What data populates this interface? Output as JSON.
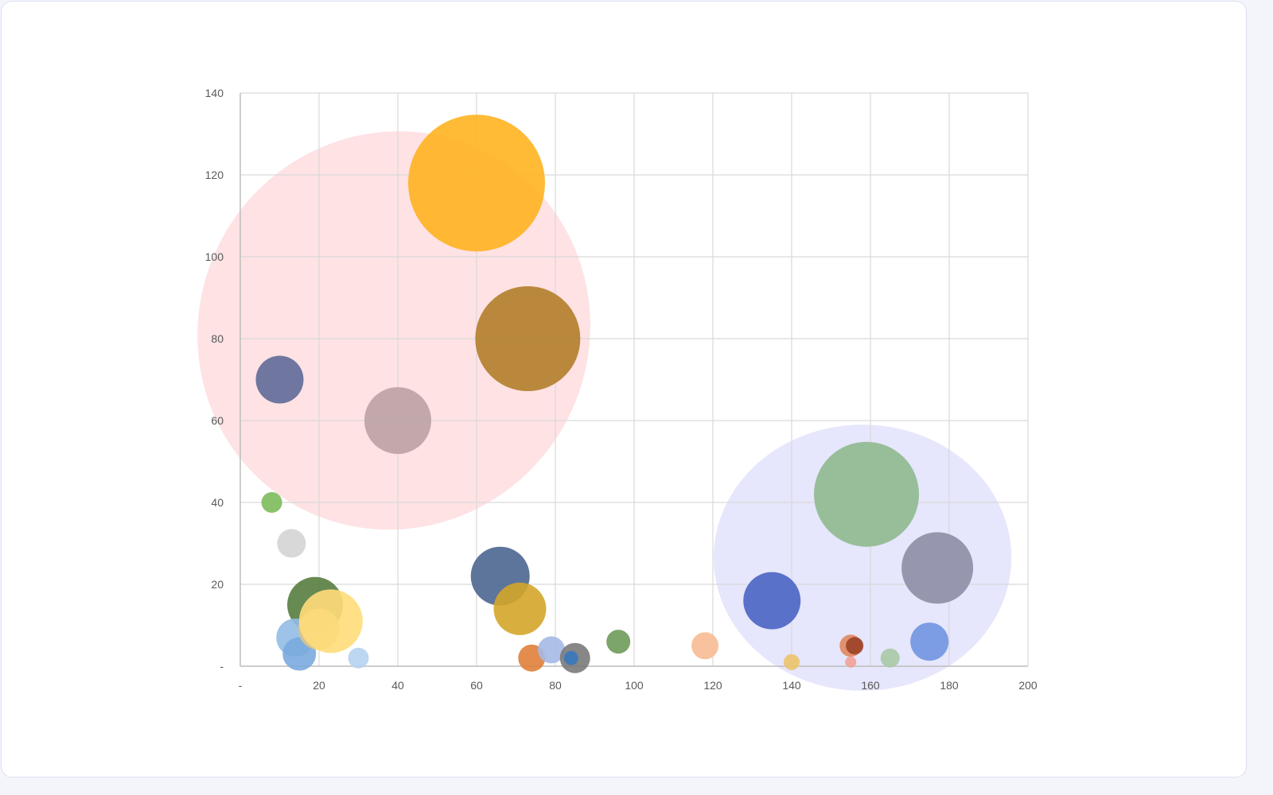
{
  "chart_data": {
    "type": "bubble",
    "title": "",
    "xlabel": "",
    "ylabel": "",
    "xlim": [
      0,
      200
    ],
    "ylim": [
      0,
      140
    ],
    "grid": true,
    "legend": "none",
    "x_ticks": [
      "-",
      "20",
      "40",
      "60",
      "80",
      "100",
      "120",
      "140",
      "160",
      "180",
      "200"
    ],
    "y_ticks": [
      "-",
      "20",
      "40",
      "60",
      "80",
      "100",
      "120",
      "140"
    ],
    "highlight_regions": [
      {
        "name": "top-left-cluster",
        "cx": 39,
        "cy": 82,
        "rx": 49.5,
        "ry": 49,
        "rotation_deg": 30,
        "color": "#fdd5d9"
      },
      {
        "name": "bottom-right-cluster",
        "cx": 158,
        "cy": 26.5,
        "rx": 37.8,
        "ry": 32.5,
        "rotation_deg": 0,
        "color": "#dcdcfb"
      }
    ],
    "series": [
      {
        "x": 60,
        "y": 118,
        "size": 86,
        "color": "#ffb320"
      },
      {
        "x": 73,
        "y": 80,
        "size": 66,
        "color": "#b37e2a"
      },
      {
        "x": 40,
        "y": 60,
        "size": 42,
        "color": "#bca2a4"
      },
      {
        "x": 10,
        "y": 70,
        "size": 30,
        "color": "#5f6a98"
      },
      {
        "x": 8,
        "y": 40,
        "size": 13,
        "color": "#7cbb5a"
      },
      {
        "x": 13,
        "y": 30,
        "size": 18,
        "color": "#d4d4d4"
      },
      {
        "x": 19,
        "y": 15,
        "size": 35,
        "color": "#567c3f"
      },
      {
        "x": 14,
        "y": 7,
        "size": 24,
        "color": "#92bde5"
      },
      {
        "x": 15,
        "y": 3,
        "size": 21,
        "color": "#7aaade"
      },
      {
        "x": 20,
        "y": 9,
        "size": 26,
        "color": "#d8c48f"
      },
      {
        "x": 23,
        "y": 11,
        "size": 40,
        "color": "#ffdd7a"
      },
      {
        "x": 30,
        "y": 2,
        "size": 13,
        "color": "#b6d1f0"
      },
      {
        "x": 66,
        "y": 22,
        "size": 37,
        "color": "#4c6690"
      },
      {
        "x": 71,
        "y": 14,
        "size": 33,
        "color": "#d4a62a"
      },
      {
        "x": 74,
        "y": 2,
        "size": 17,
        "color": "#e07f3a"
      },
      {
        "x": 79,
        "y": 4,
        "size": 17,
        "color": "#a5b9e4"
      },
      {
        "x": 85,
        "y": 2,
        "size": 19,
        "color": "#7a7a7a"
      },
      {
        "x": 84,
        "y": 2,
        "size": 9,
        "color": "#3878bd"
      },
      {
        "x": 96,
        "y": 6,
        "size": 15,
        "color": "#6e9b5a"
      },
      {
        "x": 118,
        "y": 5,
        "size": 17,
        "color": "#f7bb93"
      },
      {
        "x": 135,
        "y": 16,
        "size": 36,
        "color": "#4a64c3"
      },
      {
        "x": 140,
        "y": 1,
        "size": 10,
        "color": "#ebc36a"
      },
      {
        "x": 159,
        "y": 42,
        "size": 66,
        "color": "#8fb98e"
      },
      {
        "x": 177,
        "y": 24,
        "size": 45,
        "color": "#8d8da6"
      },
      {
        "x": 175,
        "y": 6,
        "size": 24,
        "color": "#7094e1"
      },
      {
        "x": 155,
        "y": 5,
        "size": 14,
        "color": "#e0875e"
      },
      {
        "x": 156,
        "y": 5,
        "size": 11,
        "color": "#9c4126"
      },
      {
        "x": 155,
        "y": 1,
        "size": 7,
        "color": "#f2a193"
      },
      {
        "x": 165,
        "y": 2,
        "size": 12,
        "color": "#a9c9a5"
      }
    ]
  }
}
